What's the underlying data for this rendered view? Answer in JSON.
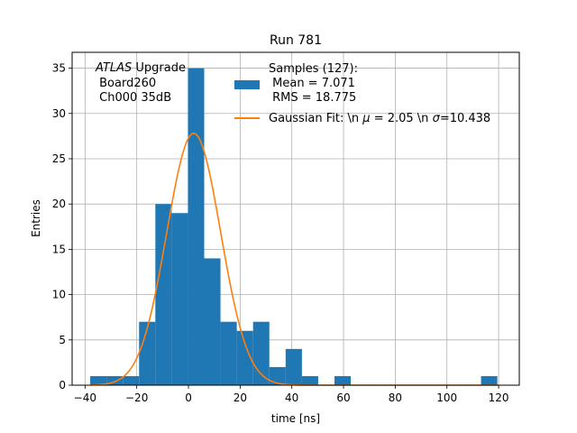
{
  "chart_data": {
    "type": "histogram",
    "title": "Run 781",
    "xlabel": "time [ns]",
    "ylabel": "Entries",
    "xlim": [
      -45,
      128
    ],
    "ylim": [
      0,
      36.75
    ],
    "x_ticks": [
      -40,
      -20,
      0,
      20,
      40,
      60,
      80,
      100,
      120
    ],
    "y_ticks": [
      0,
      5,
      10,
      15,
      20,
      25,
      30,
      35
    ],
    "grid": true,
    "bin_width": 6.3,
    "bins": [
      {
        "x0": -38.0,
        "x1": -31.7,
        "count": 1
      },
      {
        "x0": -31.7,
        "x1": -25.4,
        "count": 1
      },
      {
        "x0": -25.4,
        "x1": -19.1,
        "count": 1
      },
      {
        "x0": -19.1,
        "x1": -12.8,
        "count": 7
      },
      {
        "x0": -12.8,
        "x1": -6.5,
        "count": 20
      },
      {
        "x0": -6.5,
        "x1": -0.2,
        "count": 19
      },
      {
        "x0": -0.2,
        "x1": 6.1,
        "count": 35
      },
      {
        "x0": 6.1,
        "x1": 12.4,
        "count": 14
      },
      {
        "x0": 12.4,
        "x1": 18.7,
        "count": 7
      },
      {
        "x0": 18.7,
        "x1": 25.0,
        "count": 6
      },
      {
        "x0": 25.0,
        "x1": 31.3,
        "count": 7
      },
      {
        "x0": 31.3,
        "x1": 37.6,
        "count": 2
      },
      {
        "x0": 37.6,
        "x1": 43.9,
        "count": 4
      },
      {
        "x0": 43.9,
        "x1": 50.2,
        "count": 1
      },
      {
        "x0": 50.2,
        "x1": 56.5,
        "count": 0
      },
      {
        "x0": 56.5,
        "x1": 62.8,
        "count": 1
      },
      {
        "x0": 62.8,
        "x1": 69.1,
        "count": 0
      },
      {
        "x0": 69.1,
        "x1": 75.4,
        "count": 0
      },
      {
        "x0": 75.4,
        "x1": 81.7,
        "count": 0
      },
      {
        "x0": 81.7,
        "x1": 88.0,
        "count": 0
      },
      {
        "x0": 88.0,
        "x1": 94.3,
        "count": 0
      },
      {
        "x0": 94.3,
        "x1": 100.6,
        "count": 0
      },
      {
        "x0": 100.6,
        "x1": 106.9,
        "count": 0
      },
      {
        "x0": 106.9,
        "x1": 113.2,
        "count": 0
      },
      {
        "x0": 113.2,
        "x1": 119.5,
        "count": 1
      }
    ],
    "gaussian_fit": {
      "mu": 2.05,
      "sigma": 10.438,
      "amplitude": 27.8,
      "x_range": [
        -38,
        120
      ]
    },
    "colors": {
      "histogram": "#1f77b4",
      "fit": "#ff7f0e",
      "grid": "#b0b0b0"
    },
    "legend": {
      "placement": "top-right",
      "entries": [
        {
          "name": "Samples (127):\n Mean = 7.071\n RMS = 18.775",
          "kind": "patch",
          "color": "#1f77b4"
        },
        {
          "name": "Gaussian Fit: \\n $\\mu$ = 2.05 \\n $\\sigma$=10.438",
          "kind": "line",
          "color": "#ff7f0e"
        }
      ]
    },
    "annotation": {
      "italic": "ATLAS",
      "rest": " Upgrade",
      "line2": " Board260",
      "line3": " Ch000 35dB"
    }
  }
}
